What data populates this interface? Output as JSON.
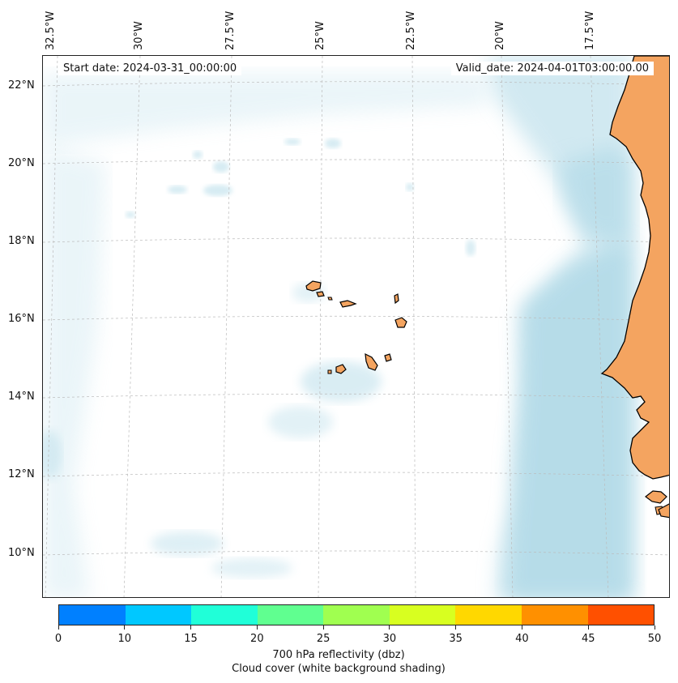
{
  "map": {
    "start_date": "Start date: 2024-03-31_00:00:00",
    "valid_date": "Valid_date: 2024-04-01T03:00:00.00",
    "lon_labels": [
      "32.5°W",
      "30°W",
      "27.5°W",
      "25°W",
      "22.5°W",
      "20°W",
      "17.5°W"
    ],
    "lat_labels": [
      "22°N",
      "20°N",
      "18°N",
      "16°N",
      "14°N",
      "12°N",
      "10°N"
    ],
    "colors": {
      "land": "#f4a460",
      "cloud": "#add8e6",
      "coast": "#000000",
      "gridline": "#bbbbbb"
    }
  },
  "colorbar": {
    "ticks": [
      "0",
      "10",
      "15",
      "20",
      "25",
      "30",
      "35",
      "40",
      "45",
      "50"
    ],
    "colors": [
      "#0080ff",
      "#00c8ff",
      "#20ffd8",
      "#60ff90",
      "#a0ff50",
      "#d8ff20",
      "#ffd800",
      "#ff9000",
      "#ff5000"
    ],
    "label_line1": "700 hPa reflectivity (dbz)",
    "label_line2": "Cloud cover (white background shading)"
  }
}
